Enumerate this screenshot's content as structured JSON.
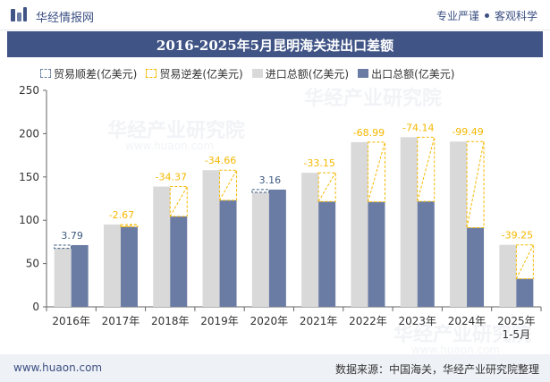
{
  "header": {
    "brand": "华经情报网",
    "tagline_left": "专业严谨",
    "tagline_right": "客观科学"
  },
  "watermark": {
    "text": "华经产业研究院",
    "url": "www.huaon.com"
  },
  "footer": {
    "site": "www.huaon.com",
    "source": "数据来源：中国海关，华经产业研究院整理"
  },
  "colors": {
    "header_bar": "#405486",
    "import_bar": "#d9d9d9",
    "export_bar": "#6b7ca4",
    "deficit_label": "#f5b800",
    "surplus_label": "#3d5a80"
  },
  "chart_data": {
    "type": "bar",
    "title": "2016-2025年5月昆明海关进出口差额",
    "legend": [
      "贸易顺差(亿美元)",
      "贸易逆差(亿美元)",
      "进口总额(亿美元)",
      "出口总额(亿美元)"
    ],
    "legend_placement": "top-left",
    "categories": [
      "2016年",
      "2017年",
      "2018年",
      "2019年",
      "2020年",
      "2021年",
      "2022年",
      "2023年",
      "2024年",
      "2025年\n1-5月"
    ],
    "series": [
      {
        "name": "进口总额(亿美元)",
        "values": [
          67.5,
          95.1,
          138.9,
          157.8,
          132.2,
          154.8,
          190.2,
          195.9,
          190.9,
          71.6
        ]
      },
      {
        "name": "出口总额(亿美元)",
        "values": [
          71.3,
          92.4,
          104.5,
          123.1,
          135.4,
          121.6,
          121.2,
          121.8,
          91.4,
          32.4
        ]
      }
    ],
    "balance": [
      3.79,
      -2.67,
      -34.37,
      -34.66,
      3.16,
      -33.15,
      -68.99,
      -74.14,
      -99.49,
      -39.25
    ],
    "balance_labels": [
      "3.79",
      "-2.67",
      "-34.37",
      "-34.66",
      "3.16",
      "-33.15",
      "-68.99",
      "-74.14",
      "-99.49",
      "-39.25"
    ],
    "y_ticks": [
      "0",
      "50",
      "100",
      "150",
      "200",
      "250"
    ],
    "ylim": [
      0,
      250
    ],
    "grid": false
  }
}
